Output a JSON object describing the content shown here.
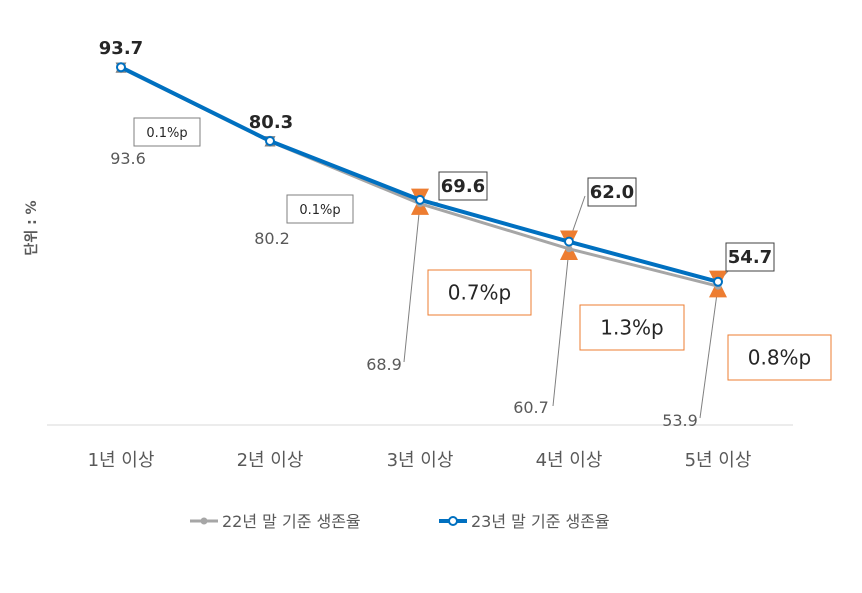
{
  "chart_data": {
    "type": "line",
    "ylabel": "단위 : %",
    "categories": [
      "1년 이상",
      "2년 이상",
      "3년 이상",
      "4년 이상",
      "5년 이상"
    ],
    "series": [
      {
        "name": "22년 말 기준 생존율",
        "color": "#a6a6a6",
        "values": [
          93.6,
          80.2,
          68.9,
          60.7,
          53.9
        ],
        "labels": [
          "93.6",
          "80.2",
          "68.9",
          "60.7",
          "53.9"
        ]
      },
      {
        "name": "23년 말 기준 생존율",
        "color": "#0070c0",
        "values": [
          93.7,
          80.3,
          69.6,
          62.0,
          54.7
        ],
        "labels": [
          "93.7",
          "80.3",
          "69.6",
          "62.0",
          "54.7"
        ]
      }
    ],
    "differences": [
      "0.1%p",
      "0.1%p",
      "0.7%p",
      "1.3%p",
      "0.8%p"
    ],
    "difference_colors": [
      "#808080",
      "#808080",
      "#ed7d31",
      "#ed7d31",
      "#ed7d31"
    ],
    "grid": false,
    "legend": "bottom"
  }
}
